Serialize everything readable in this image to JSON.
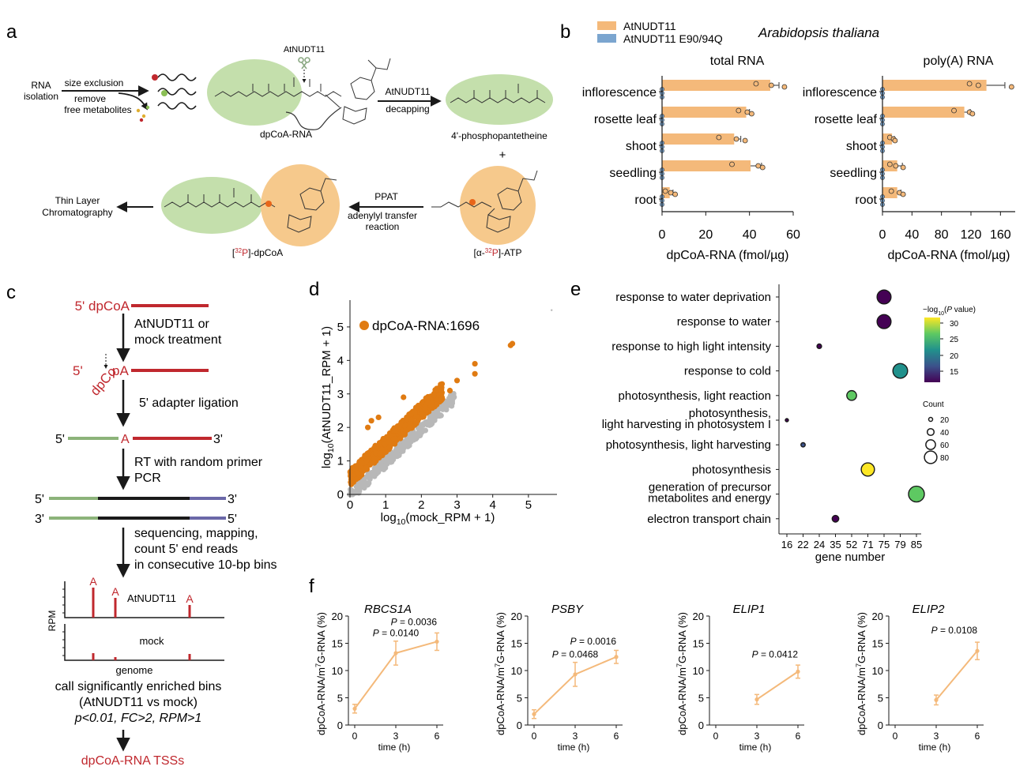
{
  "colors": {
    "orange": "#f4b97a",
    "orange_dark": "#e07b12",
    "blue": "#7ba5cf",
    "red": "#c0282e",
    "green_oval": "#c4dfac",
    "orange_oval": "#f6c98c",
    "adapter_green": "#8cb37a",
    "adapter_purple": "#6b68a8",
    "grey_pts": "#b8b8b8"
  },
  "panels": {
    "a": "a",
    "b": "b",
    "c": "c",
    "d": "d",
    "e": "e",
    "f": "f"
  },
  "panel_a": {
    "rna_isolation": [
      "RNA",
      "isolation"
    ],
    "size_exclusion": "size exclusion",
    "remove_free": [
      "remove",
      "free metabolites"
    ],
    "scissors_label": "AtNUDT11",
    "dpcoa_rna": "dpCoA-RNA",
    "enzyme": "AtNUDT11",
    "decapping": "decapping",
    "product": "4'-phosphopantetheine",
    "plus": "+",
    "ppat": "PPAT",
    "adenylyl": [
      "adenylyl transfer",
      "reaction"
    ],
    "tlc": [
      "Thin Layer",
      "Chromatography"
    ],
    "labeled_dpcoa": {
      "pre": "[",
      "sup": "32",
      "el": "P",
      "post": "]-dpCoA"
    },
    "labeled_atp": {
      "pre": "[α-",
      "sup": "32",
      "el": "P",
      "post": "]-ATP"
    },
    "icons": [
      "scissors-icon",
      "wavy-rna-icon",
      "arrow-icon"
    ]
  },
  "panel_b": {
    "species": "Arabidopsis thaliana",
    "legend": [
      "AtNUDT11",
      "AtNUDT11 E90/94Q"
    ]
  },
  "panel_c": {
    "start_label": "5' dpCoA",
    "step1": [
      "AtNUDT11 or",
      "mock treatment"
    ],
    "five": "5'",
    "dpco": "dpCo",
    "pA": "pA",
    "step2": "5' adapter ligation",
    "lig_5": "5'",
    "lig_A": "A",
    "lig_3": "3'",
    "step3": [
      "RT with random primer",
      "PCR"
    ],
    "ds_top": [
      "5'",
      "3'"
    ],
    "ds_bot": [
      "3'",
      "5'"
    ],
    "step4": [
      "sequencing, mapping,",
      "count 5' end reads",
      "in consecutive 10-bp bins"
    ],
    "track_A": "A",
    "track1": "AtNUDT11",
    "track2": "mock",
    "rpm": "RPM",
    "genome": "genome",
    "call": [
      "call significantly enriched bins",
      "(AtNUDT11 vs mock)",
      "p<0.01, FC>2, RPM>1"
    ],
    "result": "dpCoA-RNA TSSs"
  },
  "chart_data": [
    {
      "id": "b-total",
      "type": "bar",
      "orientation": "horizontal",
      "title": "total RNA",
      "xlabel": "dpCoA-RNA (fmol/µg)",
      "xlim": [
        0,
        60
      ],
      "xticks": [
        "0",
        "20",
        "40",
        "60"
      ],
      "categories": [
        "inflorescence",
        "rosette leaf",
        "shoot",
        "seedling",
        "root"
      ],
      "series": [
        {
          "name": "AtNUDT11",
          "values": [
            49.5,
            38.5,
            33,
            40.5,
            3.5
          ],
          "err": [
            4,
            1.5,
            3,
            5,
            1.5
          ],
          "points": [
            [
              43,
              50,
              56
            ],
            [
              35,
              39,
              41
            ],
            [
              26,
              34,
              38
            ],
            [
              32,
              44,
              46
            ],
            [
              1.5,
              4,
              6
            ]
          ]
        },
        {
          "name": "AtNUDT11 E90/94Q",
          "values": [
            0,
            0,
            0,
            0,
            0
          ]
        }
      ]
    },
    {
      "id": "b-polyA",
      "type": "bar",
      "orientation": "horizontal",
      "title": "poly(A) RNA",
      "xlabel": "dpCoA-RNA (fmol/µg)",
      "xlim": [
        0,
        180
      ],
      "xticks": [
        "0",
        "40",
        "80",
        "120",
        "160"
      ],
      "categories": [
        "inflorescence",
        "rosette leaf",
        "shoot",
        "seedling",
        "root"
      ],
      "series": [
        {
          "name": "AtNUDT11",
          "values": [
            141,
            111,
            13,
            20,
            20
          ],
          "err": [
            25,
            8,
            3,
            7,
            5
          ],
          "points": [
            [
              118,
              130,
              175
            ],
            [
              97,
              118,
              122
            ],
            [
              10,
              15,
              17
            ],
            [
              10,
              18,
              28
            ],
            [
              12,
              23,
              28
            ]
          ]
        },
        {
          "name": "AtNUDT11 E90/94Q",
          "values": [
            0,
            0,
            0,
            0,
            0
          ]
        }
      ]
    },
    {
      "id": "d",
      "type": "scatter",
      "xlabel": {
        "pre": "log",
        "sub": "10",
        "post": "(mock_RPM + 1)"
      },
      "ylabel": {
        "pre": "log",
        "sub": "10",
        "post": "(AtNUDT11_RPM + 1)"
      },
      "xlim": [
        0,
        5.8
      ],
      "ylim": [
        0,
        5.8
      ],
      "xticks": [
        "0",
        "1",
        "2",
        "3",
        "4",
        "5"
      ],
      "yticks": [
        "0",
        "1",
        "2",
        "3",
        "4",
        "5"
      ],
      "legend": "dpCoA-RNA:1696",
      "highlight_points": [
        [
          0.5,
          2.0
        ],
        [
          0.6,
          2.2
        ],
        [
          0.8,
          2.3
        ],
        [
          1.5,
          2.9
        ],
        [
          2.8,
          3.1
        ],
        [
          3.0,
          3.4
        ],
        [
          3.5,
          3.6
        ],
        [
          3.5,
          3.9
        ],
        [
          4.5,
          4.45
        ],
        [
          4.55,
          4.5
        ]
      ]
    },
    {
      "id": "e",
      "type": "scatter",
      "subtype": "bubble",
      "xlabel": "gene number",
      "xticks": [
        "16",
        "22",
        "24",
        "35",
        "52",
        "71",
        "75",
        "79",
        "85"
      ],
      "categories": [
        "response to water deprivation",
        "response to water",
        "response to high light intensity",
        "response to cold",
        "photosynthesis, light reaction",
        "photosynthesis,|light harvesting in photosystem I",
        "photosynthesis, light harvesting",
        "photosynthesis",
        "generation of precursor|metabolites and energy",
        "electron transport chain"
      ],
      "points": [
        {
          "term": 0,
          "gene_number": 75,
          "count": 75,
          "neglog10p": 10
        },
        {
          "term": 1,
          "gene_number": 75,
          "count": 75,
          "neglog10p": 10
        },
        {
          "term": 2,
          "gene_number": 24,
          "count": 24,
          "neglog10p": 12
        },
        {
          "term": 3,
          "gene_number": 79,
          "count": 79,
          "neglog10p": 19
        },
        {
          "term": 4,
          "gene_number": 52,
          "count": 52,
          "neglog10p": 25
        },
        {
          "term": 5,
          "gene_number": 16,
          "count": 16,
          "neglog10p": 11
        },
        {
          "term": 6,
          "gene_number": 22,
          "count": 22,
          "neglog10p": 13
        },
        {
          "term": 7,
          "gene_number": 71,
          "count": 71,
          "neglog10p": 30
        },
        {
          "term": 8,
          "gene_number": 85,
          "count": 85,
          "neglog10p": 23
        },
        {
          "term": 9,
          "gene_number": 35,
          "count": 35,
          "neglog10p": 11
        }
      ],
      "colorbar_title": {
        "pre": "−log",
        "sub": "10",
        "post": "(",
        "ital": "P",
        "post2": " value)"
      },
      "colorbar_ticks": [
        "30",
        "25",
        "20",
        "15"
      ],
      "size_legend_title": "Count",
      "size_legend": [
        "20",
        "40",
        "60",
        "80"
      ]
    },
    {
      "id": "f1",
      "type": "line",
      "title": "RBCS1A",
      "xlabel": "time (h)",
      "ylabel": {
        "pre": "dpCoA-RNA/m",
        "sup": "7",
        "post": "G-RNA (%)"
      },
      "x": [
        0,
        3,
        6
      ],
      "values": [
        3,
        13.2,
        15.3
      ],
      "err": [
        0.8,
        2.2,
        1.6
      ],
      "xlim": [
        0,
        6.4
      ],
      "ylim": [
        0,
        20
      ],
      "xticks": [
        "0",
        "3",
        "6"
      ],
      "yticks": [
        "0",
        "5",
        "10",
        "15",
        "20"
      ],
      "annotations": [
        {
          "p": "P",
          "text": " = 0.0140",
          "x": 3,
          "y": 16.3
        },
        {
          "p": "P",
          "text": " = 0.0036",
          "x": 6,
          "y": 18.3
        }
      ]
    },
    {
      "id": "f2",
      "type": "line",
      "title": "PSBY",
      "xlabel": "time (h)",
      "ylabel": {
        "pre": "dpCoA-RNA/m",
        "sup": "7",
        "post": "G-RNA (%)"
      },
      "x": [
        0,
        3,
        6
      ],
      "values": [
        2,
        9.3,
        12.5
      ],
      "err": [
        0.8,
        2.2,
        1.2
      ],
      "xlim": [
        0,
        6.4
      ],
      "ylim": [
        0,
        20
      ],
      "xticks": [
        "0",
        "3",
        "6"
      ],
      "yticks": [
        "0",
        "5",
        "10",
        "15",
        "20"
      ],
      "annotations": [
        {
          "p": "P",
          "text": " = 0.0468",
          "x": 3,
          "y": 12.4
        },
        {
          "p": "P",
          "text": " = 0.0016",
          "x": 6,
          "y": 14.8
        }
      ]
    },
    {
      "id": "f3",
      "type": "line",
      "title": "ELIP1",
      "xlabel": "time (h)",
      "ylabel": {
        "pre": "dpCoA-RNA/m",
        "sup": "7",
        "post": "G-RNA (%)"
      },
      "x": [
        3,
        6
      ],
      "values": [
        4.7,
        9.8
      ],
      "err": [
        0.9,
        1.2
      ],
      "xlim": [
        0,
        6.4
      ],
      "ylim": [
        0,
        20
      ],
      "xticks": [
        "0",
        "3",
        "6"
      ],
      "yticks": [
        "0",
        "5",
        "10",
        "15",
        "20"
      ],
      "annotations": [
        {
          "p": "P",
          "text": " = 0.0412",
          "x": 6,
          "y": 12.4
        }
      ]
    },
    {
      "id": "f4",
      "type": "line",
      "title": "ELIP2",
      "xlabel": "time (h)",
      "ylabel": {
        "pre": "dpCoA-RNA/m",
        "sup": "7",
        "post": "G-RNA (%)"
      },
      "x": [
        3,
        6
      ],
      "values": [
        4.6,
        13.6
      ],
      "err": [
        0.9,
        1.6
      ],
      "xlim": [
        0,
        6.4
      ],
      "ylim": [
        0,
        20
      ],
      "xticks": [
        "0",
        "3",
        "6"
      ],
      "yticks": [
        "0",
        "5",
        "10",
        "15",
        "20"
      ],
      "annotations": [
        {
          "p": "P",
          "text": " = 0.0108",
          "x": 6,
          "y": 16.8
        }
      ]
    }
  ]
}
